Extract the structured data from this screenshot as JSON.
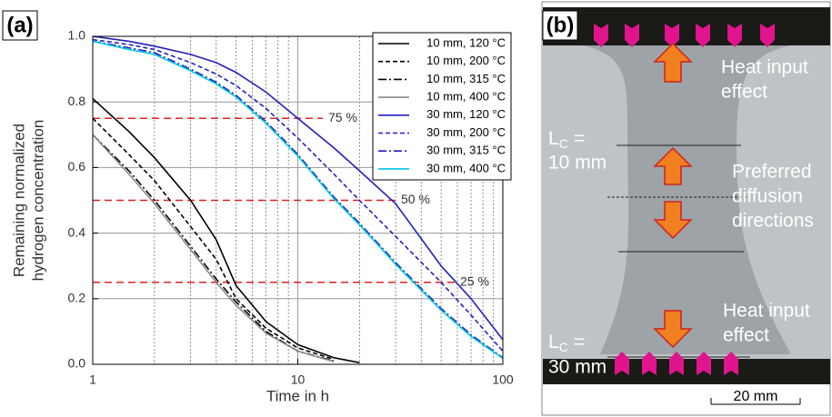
{
  "chart_data": {
    "type": "line",
    "panel_label": "(a)",
    "xlabel": "Time in h",
    "ylabel": [
      "Remaining normalized",
      "hydrogen concentration"
    ],
    "log_x": true,
    "xlim": [
      1,
      100
    ],
    "xticks": [
      1,
      10,
      100
    ],
    "ylim": [
      0,
      1
    ],
    "yticks": [
      {
        "value": 0,
        "label": "0.0"
      },
      0.2,
      0.4,
      0.6,
      0.8,
      {
        "value": 1,
        "label": "1.0"
      }
    ],
    "grid": true,
    "minor_grid": true,
    "x": [
      1,
      1.5,
      2,
      3,
      4,
      5,
      7,
      10,
      15,
      20,
      30,
      50,
      70,
      100
    ],
    "series": [
      {
        "name": "10 mm, 120 °C",
        "color": "#000000",
        "dash": "solid",
        "values": [
          0.81,
          0.71,
          0.63,
          0.5,
          0.38,
          0.24,
          0.13,
          0.06,
          0.02,
          0.005,
          null,
          null,
          null,
          null
        ]
      },
      {
        "name": "10 mm, 200 °C",
        "color": "#000000",
        "dash": "dash",
        "values": [
          0.75,
          0.64,
          0.56,
          0.42,
          0.32,
          0.2,
          0.11,
          0.05,
          0.015,
          null,
          null,
          null,
          null,
          null
        ]
      },
      {
        "name": "10 mm, 315 °C",
        "color": "#000000",
        "dash": "dashdot",
        "values": [
          0.7,
          0.59,
          0.5,
          0.36,
          0.26,
          0.19,
          0.1,
          0.04,
          0.01,
          null,
          null,
          null,
          null,
          null
        ]
      },
      {
        "name": "10 mm, 400 °C",
        "color": "#888888",
        "dash": "solid",
        "values": [
          0.7,
          0.58,
          0.49,
          0.35,
          0.25,
          0.18,
          0.095,
          0.04,
          0.008,
          null,
          null,
          null,
          null,
          null
        ]
      },
      {
        "name": "30 mm, 120 °C",
        "color": "#2020c0",
        "dash": "solid",
        "values": [
          1.0,
          0.985,
          0.97,
          0.945,
          0.92,
          0.89,
          0.83,
          0.75,
          0.66,
          0.59,
          0.49,
          0.3,
          0.2,
          0.075
        ]
      },
      {
        "name": "30 mm, 200 °C",
        "color": "#2020c0",
        "dash": "dash",
        "values": [
          0.99,
          0.975,
          0.96,
          0.92,
          0.885,
          0.85,
          0.78,
          0.69,
          0.58,
          0.5,
          0.39,
          0.25,
          0.15,
          0.04
        ]
      },
      {
        "name": "30 mm, 315 °C",
        "color": "#2020c0",
        "dash": "dashdot",
        "values": [
          0.985,
          0.965,
          0.95,
          0.9,
          0.86,
          0.82,
          0.74,
          0.64,
          0.51,
          0.43,
          0.31,
          0.17,
          0.09,
          0.02
        ]
      },
      {
        "name": "30 mm, 400 °C",
        "color": "#00c8e0",
        "dash": "solid",
        "values": [
          0.985,
          0.96,
          0.945,
          0.895,
          0.855,
          0.815,
          0.735,
          0.635,
          0.505,
          0.425,
          0.305,
          0.165,
          0.085,
          0.018
        ]
      }
    ],
    "reference_lines": [
      {
        "value": 0.75,
        "label": "75 %",
        "color": "#e02020"
      },
      {
        "value": 0.5,
        "label": "50 %",
        "color": "#e02020"
      },
      {
        "value": 0.25,
        "label": "25 %",
        "color": "#e02020"
      }
    ],
    "legend": "upper right"
  },
  "photo": {
    "panel_label": "(b)",
    "heat_top": [
      "Heat input",
      "effect"
    ],
    "lc_top": {
      "symbol": "L",
      "subscript": "C",
      "equals": "=",
      "value": "10 mm"
    },
    "preferred": [
      "Preferred",
      "diffusion",
      "directions"
    ],
    "heat_bottom": [
      "Heat input",
      "effect"
    ],
    "lc_bottom": {
      "symbol": "L",
      "subscript": "C",
      "equals": "=",
      "value": "30 mm"
    },
    "scale_bar": "20 mm"
  }
}
